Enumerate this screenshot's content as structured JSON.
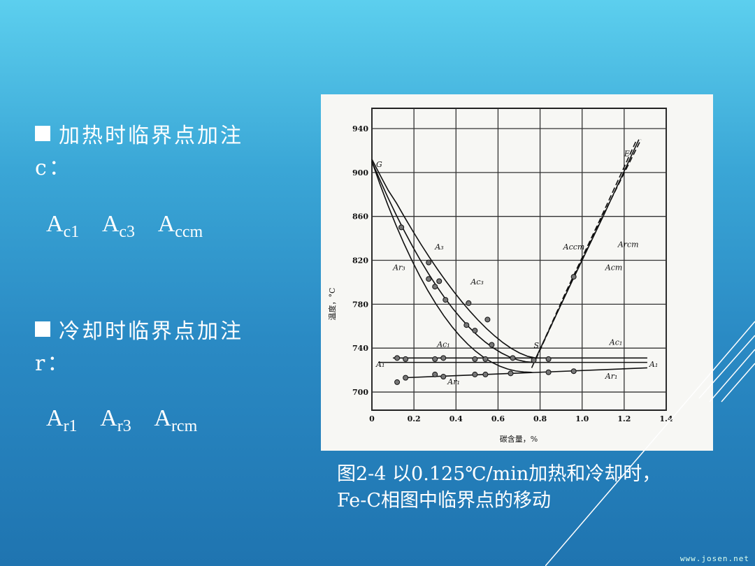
{
  "heating": {
    "text": "加热时临界点加注c：",
    "symbols": [
      {
        "base": "A",
        "sub": "c1"
      },
      {
        "base": "A",
        "sub": "c3"
      },
      {
        "base": "A",
        "sub": "ccm"
      }
    ]
  },
  "cooling": {
    "text": "冷却时临界点加注r：",
    "symbols": [
      {
        "base": "A",
        "sub": "r1"
      },
      {
        "base": "A",
        "sub": "r3"
      },
      {
        "base": "A",
        "sub": "rcm"
      }
    ]
  },
  "figure": {
    "y_label": "温度，°C",
    "x_label": "碳含量，%",
    "y_ticks": [
      "940",
      "900",
      "860",
      "820",
      "780",
      "740",
      "700"
    ],
    "x_ticks": [
      "0",
      "0.2",
      "0.4",
      "0.6",
      "0.8",
      "1.0",
      "1.2",
      "1.4"
    ],
    "labels": {
      "G": "G",
      "E": "E",
      "S": "S",
      "A3": "A₃",
      "Ar3": "Ar₃",
      "Ac3": "Ac₃",
      "Accm": "Accm",
      "Arcm": "Arcm",
      "Acm": "Acm",
      "Ac1_left": "Ac₁",
      "Ac1_right": "Ac₁",
      "A1_left": "A₁",
      "A1_right": "A₁",
      "Ar1_left": "Ar₁",
      "Ar1_right": "Ar₁"
    }
  },
  "caption": {
    "line1": "图2-4 以0.125℃/min加热和冷却时，",
    "line2": "Fe-C相图中临界点的移动"
  },
  "watermark": "www.josen.net"
}
